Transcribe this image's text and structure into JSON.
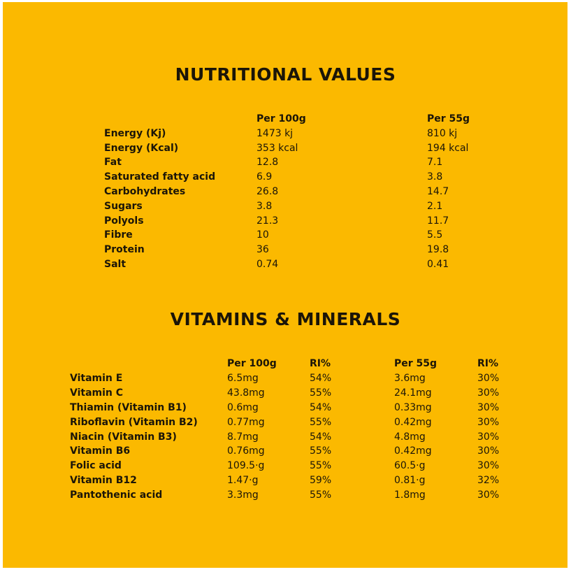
{
  "nutrition": {
    "title": "NUTRITIONAL VALUES",
    "headers": [
      "",
      "Per 100g",
      "Per 55g"
    ],
    "rows": [
      [
        "Energy (Kj)",
        "1473 kj",
        "810 kj"
      ],
      [
        "Energy (Kcal)",
        "353 kcal",
        "194 kcal"
      ],
      [
        "Fat",
        "12.8",
        "7.1"
      ],
      [
        "Saturated fatty acid",
        "6.9",
        "3.8"
      ],
      [
        "Carbohydrates",
        "26.8",
        "14.7"
      ],
      [
        "Sugars",
        "3.8",
        "2.1"
      ],
      [
        "Polyols",
        "21.3",
        "11.7"
      ],
      [
        "Fibre",
        "10",
        "5.5"
      ],
      [
        "Protein",
        "36",
        "19.8"
      ],
      [
        "Salt",
        "0.74",
        "0.41"
      ]
    ]
  },
  "vitamins": {
    "title": "VITAMINS & MINERALS",
    "headers": [
      "",
      "Per 100g",
      "RI%",
      "Per 55g",
      "RI%"
    ],
    "rows": [
      [
        "Vitamin E",
        "6.5mg",
        "54%",
        "3.6mg",
        "30%"
      ],
      [
        "Vitamin C",
        "43.8mg",
        "55%",
        "24.1mg",
        "30%"
      ],
      [
        "Thiamin (Vitamin B1)",
        "0.6mg",
        "54%",
        "0.33mg",
        "30%"
      ],
      [
        "Riboflavin (Vitamin B2)",
        "0.77mg",
        "55%",
        "0.42mg",
        "30%"
      ],
      [
        "Niacin (Vitamin B3)",
        "8.7mg",
        "54%",
        "4.8mg",
        "30%"
      ],
      [
        "Vitamin B6",
        "0.76mg",
        "55%",
        "0.42mg",
        "30%"
      ],
      [
        "Folic acid",
        "109.5·g",
        "55%",
        "60.5·g",
        "30%"
      ],
      [
        "Vitamin B12",
        "1.47·g",
        "59%",
        "0.81·g",
        "32%"
      ],
      [
        "Pantothenic acid",
        "3.3mg",
        "55%",
        "1.8mg",
        "30%"
      ]
    ]
  },
  "colors": {
    "background": "#fbb900",
    "text": "#1b1508"
  }
}
